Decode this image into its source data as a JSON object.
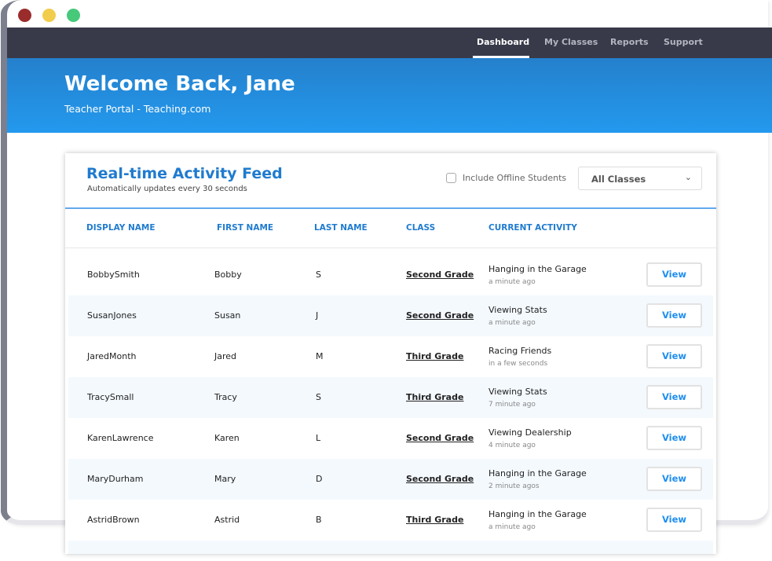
{
  "window": {
    "controls": {
      "close": "#9b2c2c",
      "minimize": "#f2cc4c",
      "maximize": "#47c97a"
    }
  },
  "nav": {
    "items": [
      {
        "label": "Dashboard",
        "active": true
      },
      {
        "label": "My Classes"
      },
      {
        "label": "Reports"
      },
      {
        "label": "Support"
      }
    ]
  },
  "hero": {
    "title": "Welcome Back, Jane",
    "subtitle": "Teacher Portal - Teaching.com"
  },
  "feed": {
    "title": "Real-time Activity Feed",
    "subtitle": "Automatically updates every 30 seconds",
    "offline_label": "Include Offline Students",
    "offline_checked": false,
    "class_filter": "All Classes",
    "columns": [
      "DISPLAY NAME",
      "FIRST NAME",
      "LAST NAME",
      "CLASS",
      "CURRENT ACTIVITY"
    ],
    "view_label": "View",
    "rows": [
      {
        "display": "BobbySmith",
        "first": "Bobby",
        "last": "S",
        "class": "Second Grade",
        "activity": "Hanging in the Garage",
        "time": "a minute ago"
      },
      {
        "display": "SusanJones",
        "first": "Susan",
        "last": "J",
        "class": "Second Grade",
        "activity": "Viewing Stats",
        "time": "a minute ago"
      },
      {
        "display": "JaredMonth",
        "first": "Jared",
        "last": "M",
        "class": "Third Grade",
        "activity": "Racing Friends",
        "time": "in a few seconds"
      },
      {
        "display": "TracySmall",
        "first": "Tracy",
        "last": "S",
        "class": "Third Grade",
        "activity": "Viewing Stats",
        "time": "7 minute ago"
      },
      {
        "display": "KarenLawrence",
        "first": "Karen",
        "last": "L",
        "class": "Second Grade",
        "activity": "Viewing Dealership",
        "time": "4 minute ago"
      },
      {
        "display": "MaryDurham",
        "first": "Mary",
        "last": "D",
        "class": "Second Grade",
        "activity": "Hanging in the Garage",
        "time": "2 minute agos"
      },
      {
        "display": "AstridBrown",
        "first": "Astrid",
        "last": "B",
        "class": "Third Grade",
        "activity": "Hanging in the Garage",
        "time": "a minute ago"
      }
    ]
  }
}
